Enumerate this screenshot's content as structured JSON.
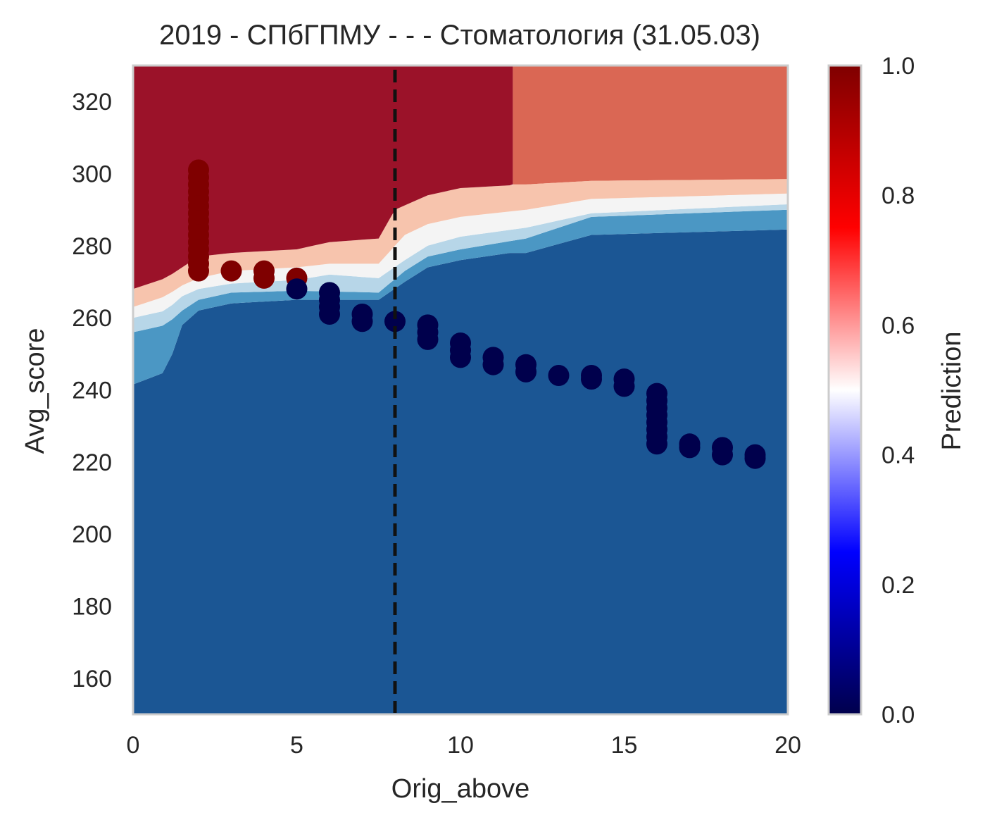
{
  "chart_data": {
    "type": "scatter",
    "title": "2019 - СПбГПМУ - - - Стоматология (31.05.03)",
    "xlabel": "Orig_above",
    "ylabel": "Avg_score",
    "xlim": [
      0,
      20
    ],
    "ylim": [
      150,
      330
    ],
    "xticks": [
      "0",
      "5",
      "10",
      "15",
      "20"
    ],
    "yticks": [
      "160",
      "180",
      "200",
      "220",
      "240",
      "260",
      "280",
      "300",
      "320"
    ],
    "grid": false,
    "vline": {
      "x": 8,
      "style": "dashed",
      "color": "#111111"
    },
    "colorbar": {
      "label": "Prediction",
      "range": [
        0,
        1
      ],
      "ticks": [
        "0.0",
        "0.2",
        "0.4",
        "0.6",
        "0.8",
        "1.0"
      ],
      "colormap": "seismic"
    },
    "background_regions": [
      {
        "name": "prob_1.0",
        "color": "#9b1229"
      },
      {
        "name": "prob_0.8",
        "color": "#da6754"
      },
      {
        "name": "prob_0.6",
        "color": "#f7c4ad"
      },
      {
        "name": "prob_0.5",
        "color": "#f4f4f4"
      },
      {
        "name": "prob_0.4",
        "color": "#b7d6e8"
      },
      {
        "name": "prob_0.2",
        "color": "#4b97c4"
      },
      {
        "name": "prob_0.0",
        "color": "#1b5694"
      }
    ],
    "series": [
      {
        "label": "predicted_1",
        "color": "#7f0000",
        "points": [
          [
            2,
            301
          ],
          [
            2,
            299
          ],
          [
            2,
            297
          ],
          [
            2,
            295
          ],
          [
            2,
            293
          ],
          [
            2,
            291
          ],
          [
            2,
            289
          ],
          [
            2,
            287
          ],
          [
            2,
            285
          ],
          [
            2,
            283
          ],
          [
            2,
            281
          ],
          [
            2,
            279
          ],
          [
            2,
            277
          ],
          [
            2,
            275
          ],
          [
            2,
            273
          ],
          [
            3,
            273
          ],
          [
            4,
            273
          ],
          [
            4,
            271
          ],
          [
            5,
            271
          ]
        ]
      },
      {
        "label": "predicted_0",
        "color": "#00004c",
        "points": [
          [
            5,
            268
          ],
          [
            6,
            267
          ],
          [
            6,
            265
          ],
          [
            6,
            263
          ],
          [
            6,
            261
          ],
          [
            7,
            261
          ],
          [
            7,
            259
          ],
          [
            8,
            259
          ],
          [
            9,
            258
          ],
          [
            9,
            256
          ],
          [
            9,
            254
          ],
          [
            10,
            253
          ],
          [
            10,
            251
          ],
          [
            10,
            249
          ],
          [
            11,
            249
          ],
          [
            11,
            247
          ],
          [
            12,
            247
          ],
          [
            12,
            245
          ],
          [
            13,
            244
          ],
          [
            14,
            244
          ],
          [
            14,
            243
          ],
          [
            15,
            243
          ],
          [
            15,
            241
          ],
          [
            16,
            239
          ],
          [
            16,
            237
          ],
          [
            16,
            235
          ],
          [
            16,
            233
          ],
          [
            16,
            231
          ],
          [
            16,
            229
          ],
          [
            16,
            227
          ],
          [
            16,
            225
          ],
          [
            17,
            225
          ],
          [
            17,
            224
          ],
          [
            18,
            224
          ],
          [
            18,
            222
          ],
          [
            19,
            222
          ],
          [
            19,
            221
          ]
        ]
      }
    ]
  }
}
